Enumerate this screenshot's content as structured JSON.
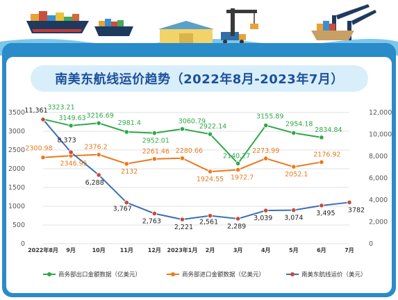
{
  "title": "南美东航线运价趋势（2022年8月-2023年7月）",
  "colors": {
    "export": "#2ea84a",
    "import": "#e87a1e",
    "freight": "#3a6fb5",
    "frame": "#2a8bc9",
    "title_text": "#1c4f9c"
  },
  "chart_data": {
    "type": "line",
    "categories": [
      "2022年8月",
      "9月",
      "10月",
      "11月",
      "12月",
      "2023年1月",
      "2月",
      "3月",
      "4月",
      "5月",
      "6月",
      "7月"
    ],
    "left_axis": {
      "ticks": [
        "0",
        "500",
        "1000",
        "1500",
        "2000",
        "2500",
        "3000",
        "3500"
      ],
      "ylim": [
        0,
        3500
      ]
    },
    "right_axis": {
      "ticks": [
        "0",
        "2,000",
        "4,000",
        "6,000",
        "8,000",
        "10,000",
        "12,000"
      ],
      "ylim": [
        0,
        12000
      ]
    },
    "grid": true,
    "legend_position": "bottom",
    "series": [
      {
        "name": "商务部出口金额数据（亿美元）",
        "axis": "left",
        "values": [
          3323.21,
          3149.63,
          3216.69,
          2981.4,
          2952.01,
          3060.79,
          2922.14,
          2140.27,
          3155.89,
          2954.18,
          2834.84,
          null
        ],
        "labels": [
          "3323.21",
          "3149.63",
          "3216.69",
          "2981.4",
          "2952.01",
          "3060.79",
          "2922.14",
          "2140.27",
          "3155.89",
          "2954.18",
          "2834.84",
          null
        ]
      },
      {
        "name": "商务部进口金额数据（亿美元）",
        "axis": "left",
        "values": [
          2300.98,
          2346.95,
          2376.2,
          2132,
          2261.46,
          2280.66,
          1924.55,
          1972.7,
          2273.99,
          2052.1,
          2176.92,
          null
        ],
        "labels": [
          "2300.98",
          "2346.95",
          "2376.2",
          "2132",
          "2261.46",
          "2280.66",
          "1924.55",
          "1972.7",
          "2273.99",
          "2052.1",
          "2176.92",
          null
        ]
      },
      {
        "name": "南美东航线运价（美元）",
        "axis": "right",
        "values": [
          11361,
          8373,
          6288,
          3767,
          2763,
          2221,
          2561,
          2289,
          3039,
          3074,
          3495,
          3782
        ],
        "labels": [
          "11,361",
          "8,373",
          "6,288",
          "3,767",
          "2,763",
          "2,221",
          "2,561",
          "2,289",
          "3,039",
          "3,074",
          "3,495",
          "3782"
        ]
      }
    ]
  }
}
